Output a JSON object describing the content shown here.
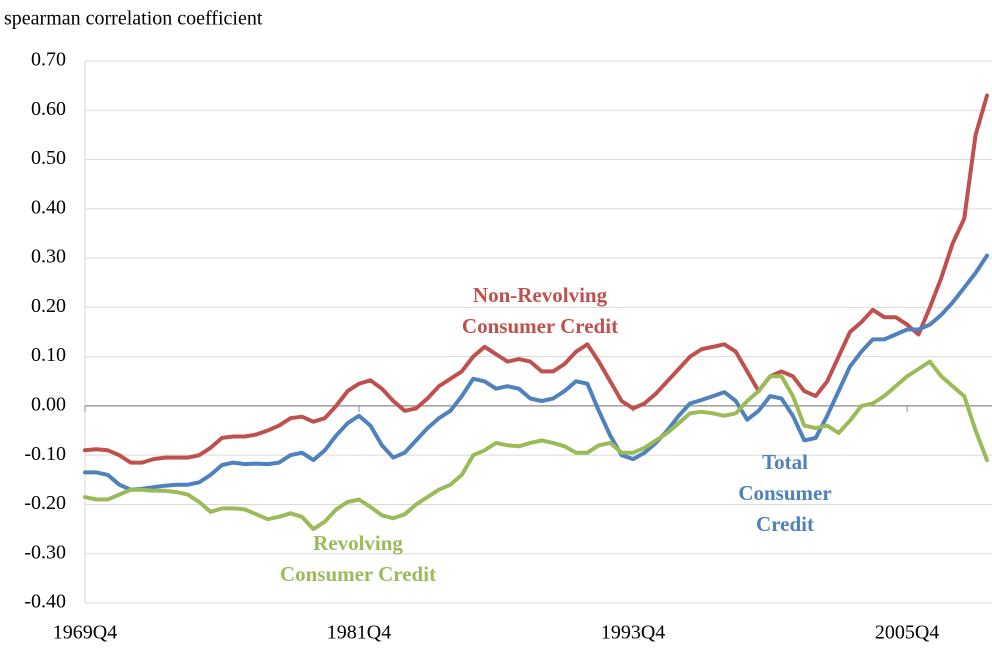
{
  "chart_data": {
    "type": "line",
    "y_axis_label": "spearman correlation coefficient",
    "categories": [
      "1969Q4",
      null,
      null,
      null,
      null,
      null,
      null,
      null,
      null,
      null,
      null,
      null,
      null,
      null,
      null,
      null,
      null,
      null,
      null,
      null,
      null,
      null,
      null,
      null,
      "1981Q4",
      null,
      null,
      null,
      null,
      null,
      null,
      null,
      null,
      null,
      null,
      null,
      null,
      null,
      null,
      null,
      null,
      null,
      null,
      null,
      null,
      null,
      null,
      null,
      "1993Q4",
      null,
      null,
      null,
      null,
      null,
      null,
      null,
      null,
      null,
      null,
      null,
      null,
      null,
      null,
      null,
      null,
      null,
      null,
      null,
      null,
      null,
      null,
      null,
      "2005Q4",
      null,
      null,
      null,
      null,
      null,
      null,
      null
    ],
    "series": [
      {
        "name": "Non-Revolving Consumer Credit",
        "color": "#c0504d",
        "values": [
          -0.09,
          -0.088,
          -0.09,
          -0.1,
          -0.115,
          -0.115,
          -0.108,
          -0.105,
          -0.105,
          -0.105,
          -0.1,
          -0.085,
          -0.065,
          -0.062,
          -0.062,
          -0.058,
          -0.05,
          -0.04,
          -0.025,
          -0.022,
          -0.032,
          -0.025,
          0.0,
          0.03,
          0.045,
          0.052,
          0.035,
          0.01,
          -0.01,
          -0.005,
          0.015,
          0.04,
          0.055,
          0.07,
          0.1,
          0.12,
          0.105,
          0.09,
          0.095,
          0.09,
          0.07,
          0.07,
          0.085,
          0.11,
          0.125,
          0.09,
          0.05,
          0.01,
          -0.005,
          0.005,
          0.025,
          0.05,
          0.075,
          0.1,
          0.115,
          0.12,
          0.125,
          0.11,
          0.07,
          0.03,
          0.06,
          0.07,
          0.06,
          0.03,
          0.02,
          0.05,
          0.1,
          0.15,
          0.17,
          0.195,
          0.18,
          0.18,
          0.165,
          0.145,
          0.2,
          0.26,
          0.33,
          0.38,
          0.55,
          0.63
        ]
      },
      {
        "name": "Total Consumer Credit",
        "color": "#4f81bd",
        "values": [
          -0.135,
          -0.135,
          -0.14,
          -0.16,
          -0.17,
          -0.168,
          -0.165,
          -0.162,
          -0.16,
          -0.16,
          -0.155,
          -0.14,
          -0.12,
          -0.115,
          -0.118,
          -0.117,
          -0.118,
          -0.115,
          -0.1,
          -0.095,
          -0.11,
          -0.09,
          -0.06,
          -0.035,
          -0.02,
          -0.04,
          -0.08,
          -0.105,
          -0.095,
          -0.07,
          -0.045,
          -0.025,
          -0.01,
          0.02,
          0.055,
          0.05,
          0.035,
          0.04,
          0.035,
          0.015,
          0.01,
          0.015,
          0.03,
          0.05,
          0.045,
          -0.01,
          -0.06,
          -0.1,
          -0.108,
          -0.095,
          -0.075,
          -0.05,
          -0.02,
          0.005,
          0.012,
          0.02,
          0.028,
          0.01,
          -0.028,
          -0.01,
          0.02,
          0.015,
          -0.02,
          -0.07,
          -0.065,
          -0.02,
          0.03,
          0.08,
          0.11,
          0.135,
          0.135,
          0.145,
          0.155,
          0.155,
          0.165,
          0.185,
          0.21,
          0.24,
          0.27,
          0.305
        ]
      },
      {
        "name": "Revolving Consumer Credit",
        "color": "#9bbb59",
        "values": [
          -0.185,
          -0.19,
          -0.19,
          -0.18,
          -0.17,
          -0.17,
          -0.172,
          -0.172,
          -0.175,
          -0.18,
          -0.195,
          -0.215,
          -0.208,
          -0.208,
          -0.21,
          -0.22,
          -0.23,
          -0.225,
          -0.218,
          -0.225,
          -0.25,
          -0.235,
          -0.21,
          -0.195,
          -0.19,
          -0.205,
          -0.222,
          -0.228,
          -0.22,
          -0.2,
          -0.185,
          -0.17,
          -0.16,
          -0.14,
          -0.1,
          -0.09,
          -0.075,
          -0.08,
          -0.082,
          -0.075,
          -0.07,
          -0.075,
          -0.082,
          -0.095,
          -0.095,
          -0.08,
          -0.075,
          -0.095,
          -0.095,
          -0.085,
          -0.07,
          -0.055,
          -0.035,
          -0.015,
          -0.012,
          -0.015,
          -0.02,
          -0.015,
          0.01,
          0.03,
          0.06,
          0.06,
          0.02,
          -0.04,
          -0.045,
          -0.04,
          -0.055,
          -0.03,
          0.0,
          0.005,
          0.02,
          0.04,
          0.06,
          0.075,
          0.09,
          0.06,
          0.04,
          0.02,
          -0.05,
          -0.11
        ]
      }
    ],
    "annotations": [
      {
        "lines": [
          "Non-Revolving",
          "Consumer Credit"
        ],
        "series": 0
      },
      {
        "lines": [
          "Total",
          "Consumer",
          "Credit"
        ],
        "series": 1
      },
      {
        "lines": [
          "Revolving",
          "Consumer Credit"
        ],
        "series": 2
      }
    ],
    "ylim": [
      -0.4,
      0.7
    ],
    "yticks": [
      {
        "value": 0.7,
        "label": "0.70"
      },
      {
        "value": 0.6,
        "label": "0.60"
      },
      {
        "value": 0.5,
        "label": "0.50"
      },
      {
        "value": 0.4,
        "label": "0.40"
      },
      {
        "value": 0.3,
        "label": "0.30"
      },
      {
        "value": 0.2,
        "label": "0.20"
      },
      {
        "value": 0.1,
        "label": "0.10"
      },
      {
        "value": 0,
        "label": "0.00"
      },
      {
        "value": -0.1,
        "label": "-0.10"
      },
      {
        "value": -0.2,
        "label": "-0.20"
      },
      {
        "value": -0.3,
        "label": "-0.30"
      },
      {
        "value": -0.4,
        "label": "-0.40"
      }
    ],
    "grid": true
  }
}
